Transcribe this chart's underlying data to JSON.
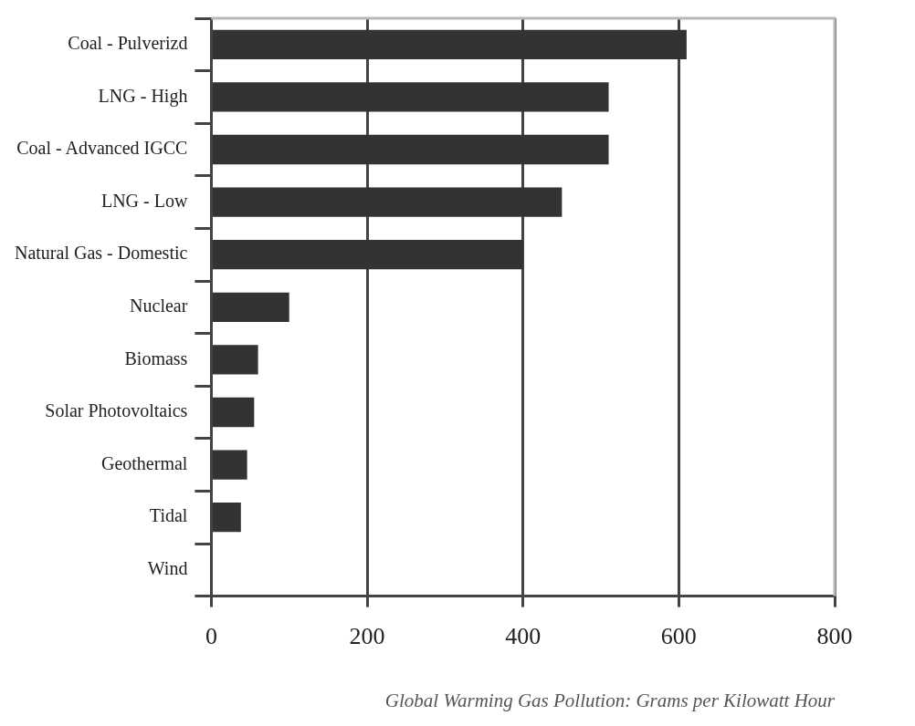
{
  "chart_data": {
    "type": "bar",
    "orientation": "horizontal",
    "xlabel": "Global Warming Gas Pollution: Grams per Kilowatt Hour",
    "categories": [
      "Coal - Pulverizd",
      "LNG - High",
      "Coal - Advanced IGCC",
      "LNG - Low",
      "Natural Gas - Domestic",
      "Nuclear",
      "Biomass",
      "Solar Photovoltaics",
      "Geothermal",
      "Tidal",
      "Wind"
    ],
    "values": [
      610,
      510,
      510,
      450,
      400,
      100,
      60,
      55,
      46,
      38,
      0
    ],
    "color": "#333333",
    "xlim": [
      0,
      800
    ],
    "xticks": [
      0,
      200,
      400,
      600,
      800
    ],
    "grid": "x"
  }
}
